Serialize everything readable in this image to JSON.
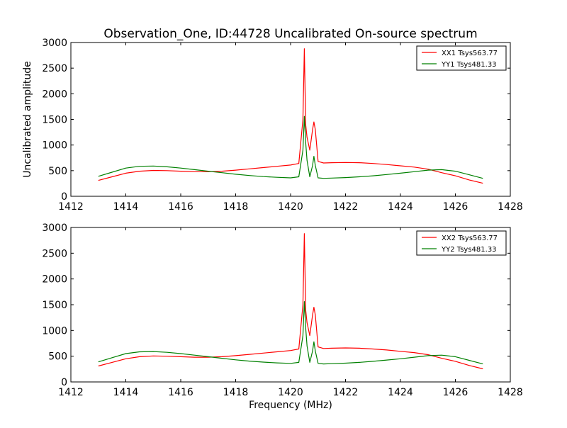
{
  "title": "Observation_One, ID:44728 Uncalibrated On-source spectrum",
  "chart_data": [
    {
      "type": "line",
      "ylabel": "Uncalibrated amplitude",
      "xlabel": "",
      "xlim": [
        1412,
        1428
      ],
      "ylim": [
        0,
        3000
      ],
      "xticks": [
        "1412",
        "1414",
        "1416",
        "1418",
        "1420",
        "1422",
        "1424",
        "1426",
        "1428"
      ],
      "yticks": [
        "0",
        "500",
        "1000",
        "1500",
        "2000",
        "2500",
        "3000"
      ],
      "legend_position": "top-right",
      "series": [
        {
          "name": "XX1 Tsys563.77",
          "color": "#ff0000",
          "x": [
            1413,
            1413.5,
            1414,
            1414.5,
            1415,
            1415.5,
            1416,
            1416.5,
            1417,
            1417.5,
            1418,
            1418.5,
            1419,
            1419.5,
            1420,
            1420.3,
            1420.45,
            1420.5,
            1420.55,
            1420.6,
            1420.7,
            1420.8,
            1420.85,
            1420.9,
            1421,
            1421.2,
            1421.5,
            1422,
            1422.5,
            1423,
            1423.5,
            1424,
            1424.5,
            1425,
            1425.5,
            1426,
            1426.5,
            1427
          ],
          "y": [
            310,
            380,
            450,
            490,
            505,
            500,
            490,
            480,
            480,
            490,
            510,
            535,
            560,
            585,
            610,
            640,
            1500,
            2880,
            1400,
            1150,
            900,
            1300,
            1450,
            1300,
            680,
            650,
            655,
            660,
            655,
            640,
            620,
            595,
            570,
            530,
            460,
            400,
            320,
            255
          ]
        },
        {
          "name": "YY1 Tsys481.33",
          "color": "#008000",
          "x": [
            1413,
            1413.5,
            1414,
            1414.5,
            1415,
            1415.5,
            1416,
            1416.5,
            1417,
            1417.5,
            1418,
            1418.5,
            1419,
            1419.5,
            1420,
            1420.3,
            1420.45,
            1420.5,
            1420.55,
            1420.6,
            1420.7,
            1420.8,
            1420.85,
            1420.9,
            1421,
            1421.2,
            1421.5,
            1422,
            1422.5,
            1423,
            1423.5,
            1424,
            1424.5,
            1425,
            1425.5,
            1426,
            1426.5,
            1427
          ],
          "y": [
            390,
            470,
            550,
            585,
            590,
            575,
            550,
            520,
            490,
            460,
            430,
            405,
            385,
            370,
            360,
            380,
            900,
            1560,
            1050,
            700,
            380,
            600,
            780,
            600,
            360,
            350,
            355,
            365,
            380,
            400,
            425,
            450,
            480,
            510,
            520,
            490,
            420,
            350
          ]
        }
      ]
    },
    {
      "type": "line",
      "ylabel": "",
      "xlabel": "Frequency (MHz)",
      "xlim": [
        1412,
        1428
      ],
      "ylim": [
        0,
        3000
      ],
      "xticks": [
        "1412",
        "1414",
        "1416",
        "1418",
        "1420",
        "1422",
        "1424",
        "1426",
        "1428"
      ],
      "yticks": [
        "0",
        "500",
        "1000",
        "1500",
        "2000",
        "2500",
        "3000"
      ],
      "legend_position": "top-right",
      "series": [
        {
          "name": "XX2 Tsys563.77",
          "color": "#ff0000",
          "x": [
            1413,
            1413.5,
            1414,
            1414.5,
            1415,
            1415.5,
            1416,
            1416.5,
            1417,
            1417.5,
            1418,
            1418.5,
            1419,
            1419.5,
            1420,
            1420.3,
            1420.45,
            1420.5,
            1420.55,
            1420.6,
            1420.7,
            1420.8,
            1420.85,
            1420.9,
            1421,
            1421.2,
            1421.5,
            1422,
            1422.5,
            1423,
            1423.5,
            1424,
            1424.5,
            1425,
            1425.5,
            1426,
            1426.5,
            1427
          ],
          "y": [
            310,
            380,
            450,
            490,
            505,
            500,
            490,
            480,
            480,
            490,
            510,
            535,
            560,
            585,
            610,
            640,
            1500,
            2880,
            1400,
            1150,
            900,
            1300,
            1450,
            1300,
            680,
            650,
            655,
            660,
            655,
            640,
            620,
            595,
            570,
            530,
            460,
            400,
            320,
            255
          ]
        },
        {
          "name": "YY2 Tsys481.33",
          "color": "#008000",
          "x": [
            1413,
            1413.5,
            1414,
            1414.5,
            1415,
            1415.5,
            1416,
            1416.5,
            1417,
            1417.5,
            1418,
            1418.5,
            1419,
            1419.5,
            1420,
            1420.3,
            1420.45,
            1420.5,
            1420.55,
            1420.6,
            1420.7,
            1420.8,
            1420.85,
            1420.9,
            1421,
            1421.2,
            1421.5,
            1422,
            1422.5,
            1423,
            1423.5,
            1424,
            1424.5,
            1425,
            1425.5,
            1426,
            1426.5,
            1427
          ],
          "y": [
            390,
            470,
            550,
            585,
            590,
            575,
            550,
            520,
            490,
            460,
            430,
            405,
            385,
            370,
            360,
            380,
            900,
            1560,
            1050,
            700,
            380,
            600,
            780,
            600,
            360,
            350,
            355,
            365,
            380,
            400,
            425,
            450,
            480,
            510,
            520,
            490,
            420,
            350
          ]
        }
      ]
    }
  ]
}
